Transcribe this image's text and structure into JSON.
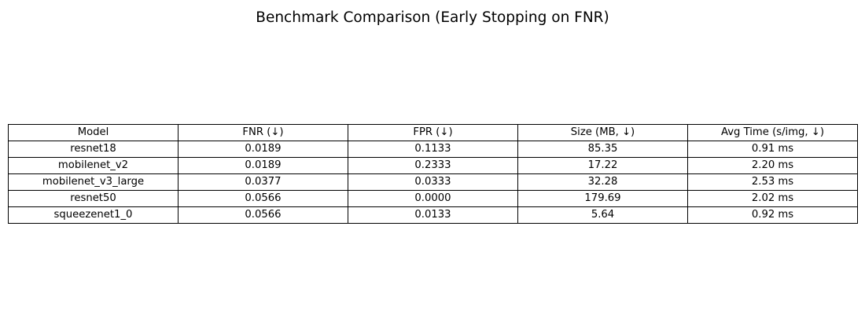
{
  "chart_data": {
    "type": "table",
    "title": "Benchmark Comparison (Early Stopping on FNR)",
    "columns": [
      "Model",
      "FNR (↓)",
      "FPR (↓)",
      "Size (MB, ↓)",
      "Avg Time (s/img, ↓)"
    ],
    "rows": [
      [
        "resnet18",
        "0.0189",
        "0.1133",
        "85.35",
        "0.91 ms"
      ],
      [
        "mobilenet_v2",
        "0.0189",
        "0.2333",
        "17.22",
        "2.20 ms"
      ],
      [
        "mobilenet_v3_large",
        "0.0377",
        "0.0333",
        "32.28",
        "2.53 ms"
      ],
      [
        "resnet50",
        "0.0566",
        "0.0000",
        "179.69",
        "2.02 ms"
      ],
      [
        "squeezenet1_0",
        "0.0566",
        "0.0133",
        "5.64",
        "0.92 ms"
      ]
    ]
  }
}
